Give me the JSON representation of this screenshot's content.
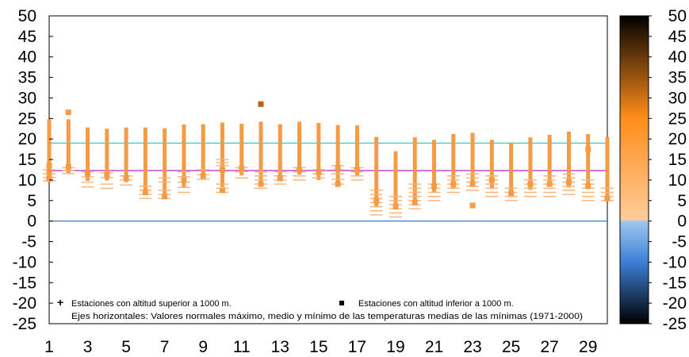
{
  "chart_data": {
    "type": "scatter",
    "x_ticks": [
      "1",
      "3",
      "5",
      "7",
      "9",
      "11",
      "13",
      "15",
      "17",
      "19",
      "21",
      "23",
      "25",
      "27",
      "29"
    ],
    "xlim": [
      1,
      30
    ],
    "y_ticks": [
      "50",
      "45",
      "40",
      "35",
      "30",
      "25",
      "20",
      "15",
      "10",
      "5",
      "0",
      "-5",
      "-10",
      "-15",
      "-20",
      "-25"
    ],
    "ylim": [
      -25,
      50
    ],
    "grid": false,
    "reference_lines": [
      {
        "value": 19.0,
        "color": "#39c9c9"
      },
      {
        "value": 12.3,
        "color": "#c01fd0"
      },
      {
        "value": 0.0,
        "color": "#1e6fd0"
      }
    ],
    "bars": {
      "days": [
        1,
        2,
        3,
        4,
        5,
        6,
        7,
        8,
        9,
        10,
        11,
        12,
        13,
        14,
        15,
        16,
        17,
        18,
        19,
        20,
        21,
        22,
        23,
        24,
        25,
        26,
        27,
        28,
        29,
        30
      ],
      "low": [
        9.5,
        11.5,
        9.8,
        9.9,
        9.5,
        7.4,
        6.4,
        8.3,
        10.5,
        8.3,
        11.1,
        9.0,
        9.7,
        11.3,
        10.0,
        8.8,
        11.0,
        3.6,
        3.3,
        5.0,
        7.0,
        8.0,
        8.6,
        7.9,
        6.9,
        7.6,
        8.4,
        8.2,
        8.0,
        6.0
      ],
      "high": [
        24.8,
        24.8,
        22.8,
        22.5,
        22.8,
        22.8,
        22.6,
        23.5,
        23.6,
        24.0,
        23.7,
        24.2,
        23.6,
        24.2,
        23.9,
        23.4,
        23.3,
        20.5,
        17.0,
        20.4,
        19.8,
        21.2,
        21.5,
        19.8,
        19.1,
        20.4,
        21.0,
        21.8,
        21.2,
        20.5
      ]
    },
    "stations_above_1000m": [
      [
        1,
        12.5
      ],
      [
        1,
        11.5
      ],
      [
        1,
        10.6
      ],
      [
        1,
        9.8
      ],
      [
        2,
        13.0
      ],
      [
        2,
        12.3
      ],
      [
        2,
        11.6
      ],
      [
        3,
        12.0
      ],
      [
        3,
        10.8
      ],
      [
        3,
        9.5
      ],
      [
        3,
        8.3
      ],
      [
        4,
        11.8
      ],
      [
        4,
        10.6
      ],
      [
        4,
        9.0
      ],
      [
        4,
        8.0
      ],
      [
        5,
        11.0
      ],
      [
        5,
        10.0
      ],
      [
        5,
        8.8
      ],
      [
        6,
        8.5
      ],
      [
        6,
        7.5
      ],
      [
        6,
        6.5
      ],
      [
        6,
        5.5
      ],
      [
        7,
        10.5
      ],
      [
        7,
        9.5
      ],
      [
        7,
        7.5
      ],
      [
        7,
        6.5
      ],
      [
        7,
        5.5
      ],
      [
        8,
        12.0
      ],
      [
        8,
        10.8
      ],
      [
        8,
        9.5
      ],
      [
        8,
        8.2
      ],
      [
        8,
        7.0
      ],
      [
        9,
        12.5
      ],
      [
        9,
        11.3
      ],
      [
        9,
        10.2
      ],
      [
        10,
        15.0
      ],
      [
        10,
        14.2
      ],
      [
        10,
        13.5
      ],
      [
        10,
        9.0
      ],
      [
        10,
        8.0
      ],
      [
        10,
        7.0
      ],
      [
        11,
        13.0
      ],
      [
        11,
        12.0
      ],
      [
        11,
        10.5
      ],
      [
        12,
        12.0
      ],
      [
        12,
        11.0
      ],
      [
        12,
        10.0
      ],
      [
        12,
        9.0
      ],
      [
        12,
        8.0
      ],
      [
        13,
        12.0
      ],
      [
        13,
        11.0
      ],
      [
        13,
        10.0
      ],
      [
        13,
        9.0
      ],
      [
        14,
        13.0
      ],
      [
        14,
        12.0
      ],
      [
        14,
        11.0
      ],
      [
        14,
        10.0
      ],
      [
        15,
        12.5
      ],
      [
        15,
        11.5
      ],
      [
        15,
        10.5
      ],
      [
        16,
        13.5
      ],
      [
        16,
        12.5
      ],
      [
        16,
        11.5
      ],
      [
        16,
        10.2
      ],
      [
        16,
        9.0
      ],
      [
        17,
        13.0
      ],
      [
        17,
        12.0
      ],
      [
        17,
        11.0
      ],
      [
        17,
        10.0
      ],
      [
        18,
        7.5
      ],
      [
        18,
        6.5
      ],
      [
        18,
        5.5
      ],
      [
        18,
        4.5
      ],
      [
        18,
        3.5
      ],
      [
        18,
        2.5
      ],
      [
        18,
        1.5
      ],
      [
        19,
        6.0
      ],
      [
        19,
        5.0
      ],
      [
        19,
        4.0
      ],
      [
        19,
        3.0
      ],
      [
        19,
        2.0
      ],
      [
        19,
        1.0
      ],
      [
        20,
        9.0
      ],
      [
        20,
        8.0
      ],
      [
        20,
        7.0
      ],
      [
        20,
        6.0
      ],
      [
        20,
        5.0
      ],
      [
        20,
        4.0
      ],
      [
        20,
        3.0
      ],
      [
        21,
        9.0
      ],
      [
        21,
        8.0
      ],
      [
        21,
        7.0
      ],
      [
        21,
        6.0
      ],
      [
        21,
        5.0
      ],
      [
        22,
        11.0
      ],
      [
        22,
        10.0
      ],
      [
        22,
        9.0
      ],
      [
        22,
        8.0
      ],
      [
        22,
        7.0
      ],
      [
        23,
        11.5
      ],
      [
        23,
        10.5
      ],
      [
        23,
        9.5
      ],
      [
        23,
        8.5
      ],
      [
        23,
        7.5
      ],
      [
        24,
        11.0
      ],
      [
        24,
        10.0
      ],
      [
        24,
        9.0
      ],
      [
        24,
        8.0
      ],
      [
        24,
        7.0
      ],
      [
        24,
        6.0
      ],
      [
        25,
        8.0
      ],
      [
        25,
        7.0
      ],
      [
        25,
        6.0
      ],
      [
        25,
        5.0
      ],
      [
        26,
        10.0
      ],
      [
        26,
        9.0
      ],
      [
        26,
        8.0
      ],
      [
        26,
        7.0
      ],
      [
        26,
        6.0
      ],
      [
        27,
        11.0
      ],
      [
        27,
        10.0
      ],
      [
        27,
        9.0
      ],
      [
        27,
        8.0
      ],
      [
        27,
        7.0
      ],
      [
        27,
        6.0
      ],
      [
        28,
        11.5
      ],
      [
        28,
        10.5
      ],
      [
        28,
        9.5
      ],
      [
        28,
        8.5
      ],
      [
        28,
        7.5
      ],
      [
        28,
        6.5
      ],
      [
        29,
        10.0
      ],
      [
        29,
        9.0
      ],
      [
        29,
        8.0
      ],
      [
        29,
        7.0
      ],
      [
        29,
        6.0
      ],
      [
        29,
        5.0
      ],
      [
        30,
        8.0
      ],
      [
        30,
        7.0
      ],
      [
        30,
        6.0
      ],
      [
        30,
        5.0
      ]
    ],
    "stations_below_1000m": [
      [
        1,
        13.5
      ],
      [
        1,
        12.0
      ],
      [
        1,
        10.5
      ],
      [
        2,
        26.5
      ],
      [
        2,
        13.2
      ],
      [
        3,
        11.5
      ],
      [
        4,
        11.2
      ],
      [
        5,
        10.5
      ],
      [
        6,
        7.0
      ],
      [
        7,
        6.0
      ],
      [
        8,
        10.0
      ],
      [
        9,
        11.0
      ],
      [
        10,
        12.5
      ],
      [
        10,
        7.5
      ],
      [
        11,
        12.8
      ],
      [
        12,
        28.5
      ],
      [
        12,
        9.0
      ],
      [
        13,
        10.5
      ],
      [
        14,
        12.5
      ],
      [
        15,
        12.0
      ],
      [
        16,
        13.0
      ],
      [
        16,
        9.0
      ],
      [
        17,
        12.5
      ],
      [
        18,
        5.0
      ],
      [
        19,
        3.5
      ],
      [
        20,
        4.5
      ],
      [
        21,
        8.5
      ],
      [
        22,
        9.0
      ],
      [
        23,
        9.0
      ],
      [
        23,
        3.8
      ],
      [
        24,
        10.0
      ],
      [
        25,
        6.8
      ],
      [
        26,
        9.0
      ],
      [
        27,
        9.0
      ],
      [
        28,
        9.5
      ],
      [
        29,
        8.5
      ],
      [
        29,
        17.5
      ],
      [
        30,
        5.5
      ]
    ],
    "legend": {
      "above": "Estaciones con altitud superior a 1000 m.",
      "below": "Estaciones con altitud inferior a 1000 m.",
      "note": "Ejes horizontales: Valores normales máximo, medio y mínimo de las temperaturas medias de las mínimas (1971-2000)"
    },
    "colorbar": {
      "ticks": [
        "50",
        "45",
        "40",
        "35",
        "30",
        "25",
        "20",
        "15",
        "10",
        "5",
        "0",
        "-5",
        "-10",
        "-15",
        "-20",
        "-25"
      ],
      "range": [
        -25,
        50
      ],
      "colors": {
        "top": "#000000",
        "high": "#ff8c1a",
        "zero": "#ffcc99",
        "below_zero": "#9cc6ef",
        "mid_negative": "#3d7fd6",
        "bottom": "#000000"
      }
    },
    "series_colors": {
      "bar": "#f59a45",
      "marker": "#f7b27a",
      "outlier": "#c05f10"
    }
  }
}
